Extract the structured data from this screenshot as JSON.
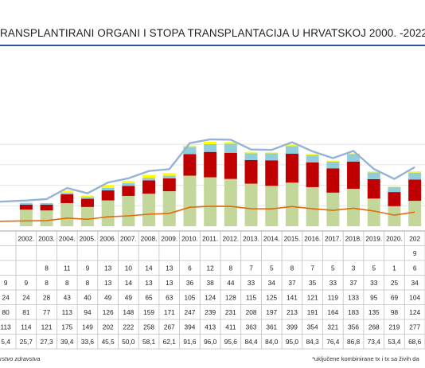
{
  "title": "RANSPLANTIRANI ORGANI I STOPA TRANSPLANTACIJA U HRVATSKOJ 2000. -2022.",
  "footnote_left": "rstvo zdravstva",
  "footnote_right": "*uključene kombinirane tx i tx sa živih da",
  "colors": {
    "kidney": "#c4d79b",
    "liver": "#c00000",
    "heart": "#92cddc",
    "other": "#ffff00",
    "total_line": "#95b3d7",
    "rate_line": "#e26b0a",
    "title_bar": "#2f5597"
  },
  "chart_data": {
    "type": "bar",
    "stacked": true,
    "categories": [
      "2002.",
      "2003.",
      "2004.",
      "2005.",
      "2006.",
      "2007.",
      "2008.",
      "2009.",
      "2010.",
      "2011.",
      "2012.",
      "2013.",
      "2014.",
      "2015.",
      "2016.",
      "2017.",
      "2018.",
      "2019.",
      "2020.",
      "202"
    ],
    "series": [
      {
        "key": "kidney",
        "values": [
          81,
          77,
          113,
          94,
          126,
          148,
          159,
          171,
          247,
          239,
          231,
          208,
          197,
          213,
          191,
          164,
          183,
          135,
          98,
          124
        ]
      },
      {
        "key": "liver",
        "values": [
          24,
          28,
          43,
          40,
          49,
          49,
          65,
          63,
          105,
          124,
          128,
          115,
          125,
          141,
          121,
          119,
          133,
          95,
          69,
          104
        ]
      },
      {
        "key": "heart",
        "values": [
          9,
          8,
          8,
          8,
          13,
          14,
          13,
          13,
          36,
          38,
          44,
          33,
          34,
          37,
          35,
          33,
          37,
          33,
          25,
          34
        ]
      },
      {
        "key": "other",
        "values": [
          0,
          0,
          11,
          9,
          13,
          10,
          14,
          13,
          6,
          12,
          8,
          7,
          5,
          8,
          7,
          5,
          3,
          5,
          1,
          6
        ]
      }
    ],
    "lines": [
      {
        "key": "total",
        "values": [
          114,
          121,
          175,
          149,
          202,
          222,
          258,
          267,
          394,
          413,
          411,
          363,
          361,
          399,
          354,
          321,
          356,
          268,
          219,
          277
        ]
      },
      {
        "key": "rate",
        "values": [
          25.7,
          27.3,
          39.4,
          33.6,
          45.5,
          50.0,
          58.1,
          62.1,
          91.6,
          96.0,
          95.6,
          84.4,
          84.0,
          95.0,
          84.3,
          76.4,
          86.8,
          73.4,
          53.4,
          68.6
        ]
      }
    ],
    "table": {
      "columns": [
        "",
        "2002.",
        "2003.",
        "2004.",
        "2005.",
        "2006.",
        "2007.",
        "2008.",
        "2009.",
        "2010.",
        "2011.",
        "2012.",
        "2013.",
        "2014.",
        "2015.",
        "2016.",
        "2017.",
        "2018.",
        "2019.",
        "2020.",
        "202"
      ],
      "rows": [
        [
          "",
          "",
          "",
          "",
          "",
          "",
          "",
          "",
          "",
          "",
          "",
          "",
          "",
          "",
          "",
          "",
          "",
          "",
          "",
          "",
          "9"
        ],
        [
          "",
          "",
          "8",
          "11",
          "9",
          "13",
          "10",
          "14",
          "13",
          "6",
          "12",
          "8",
          "7",
          "5",
          "8",
          "7",
          "5",
          "3",
          "5",
          "1",
          "6"
        ],
        [
          "9",
          "9",
          "8",
          "8",
          "8",
          "13",
          "14",
          "13",
          "13",
          "36",
          "38",
          "44",
          "33",
          "34",
          "37",
          "35",
          "33",
          "37",
          "33",
          "25",
          "34"
        ],
        [
          "24",
          "24",
          "28",
          "43",
          "40",
          "49",
          "49",
          "65",
          "63",
          "105",
          "124",
          "128",
          "115",
          "125",
          "141",
          "121",
          "119",
          "133",
          "95",
          "69",
          "104"
        ],
        [
          "80",
          "81",
          "77",
          "113",
          "94",
          "126",
          "148",
          "159",
          "171",
          "247",
          "239",
          "231",
          "208",
          "197",
          "213",
          "191",
          "164",
          "183",
          "135",
          "98",
          "124"
        ],
        [
          "113",
          "114",
          "121",
          "175",
          "149",
          "202",
          "222",
          "258",
          "267",
          "394",
          "413",
          "411",
          "363",
          "361",
          "399",
          "354",
          "321",
          "356",
          "268",
          "219",
          "277"
        ],
        [
          "5,4",
          "25,7",
          "27,3",
          "39,4",
          "33,6",
          "45,5",
          "50,0",
          "58,1",
          "62,1",
          "91,6",
          "96,0",
          "95,6",
          "84,4",
          "84,0",
          "95,0",
          "84,3",
          "76,4",
          "86,8",
          "73,4",
          "53,4",
          "68,6"
        ]
      ]
    },
    "ylim": [
      0,
      460
    ],
    "grid": true
  }
}
